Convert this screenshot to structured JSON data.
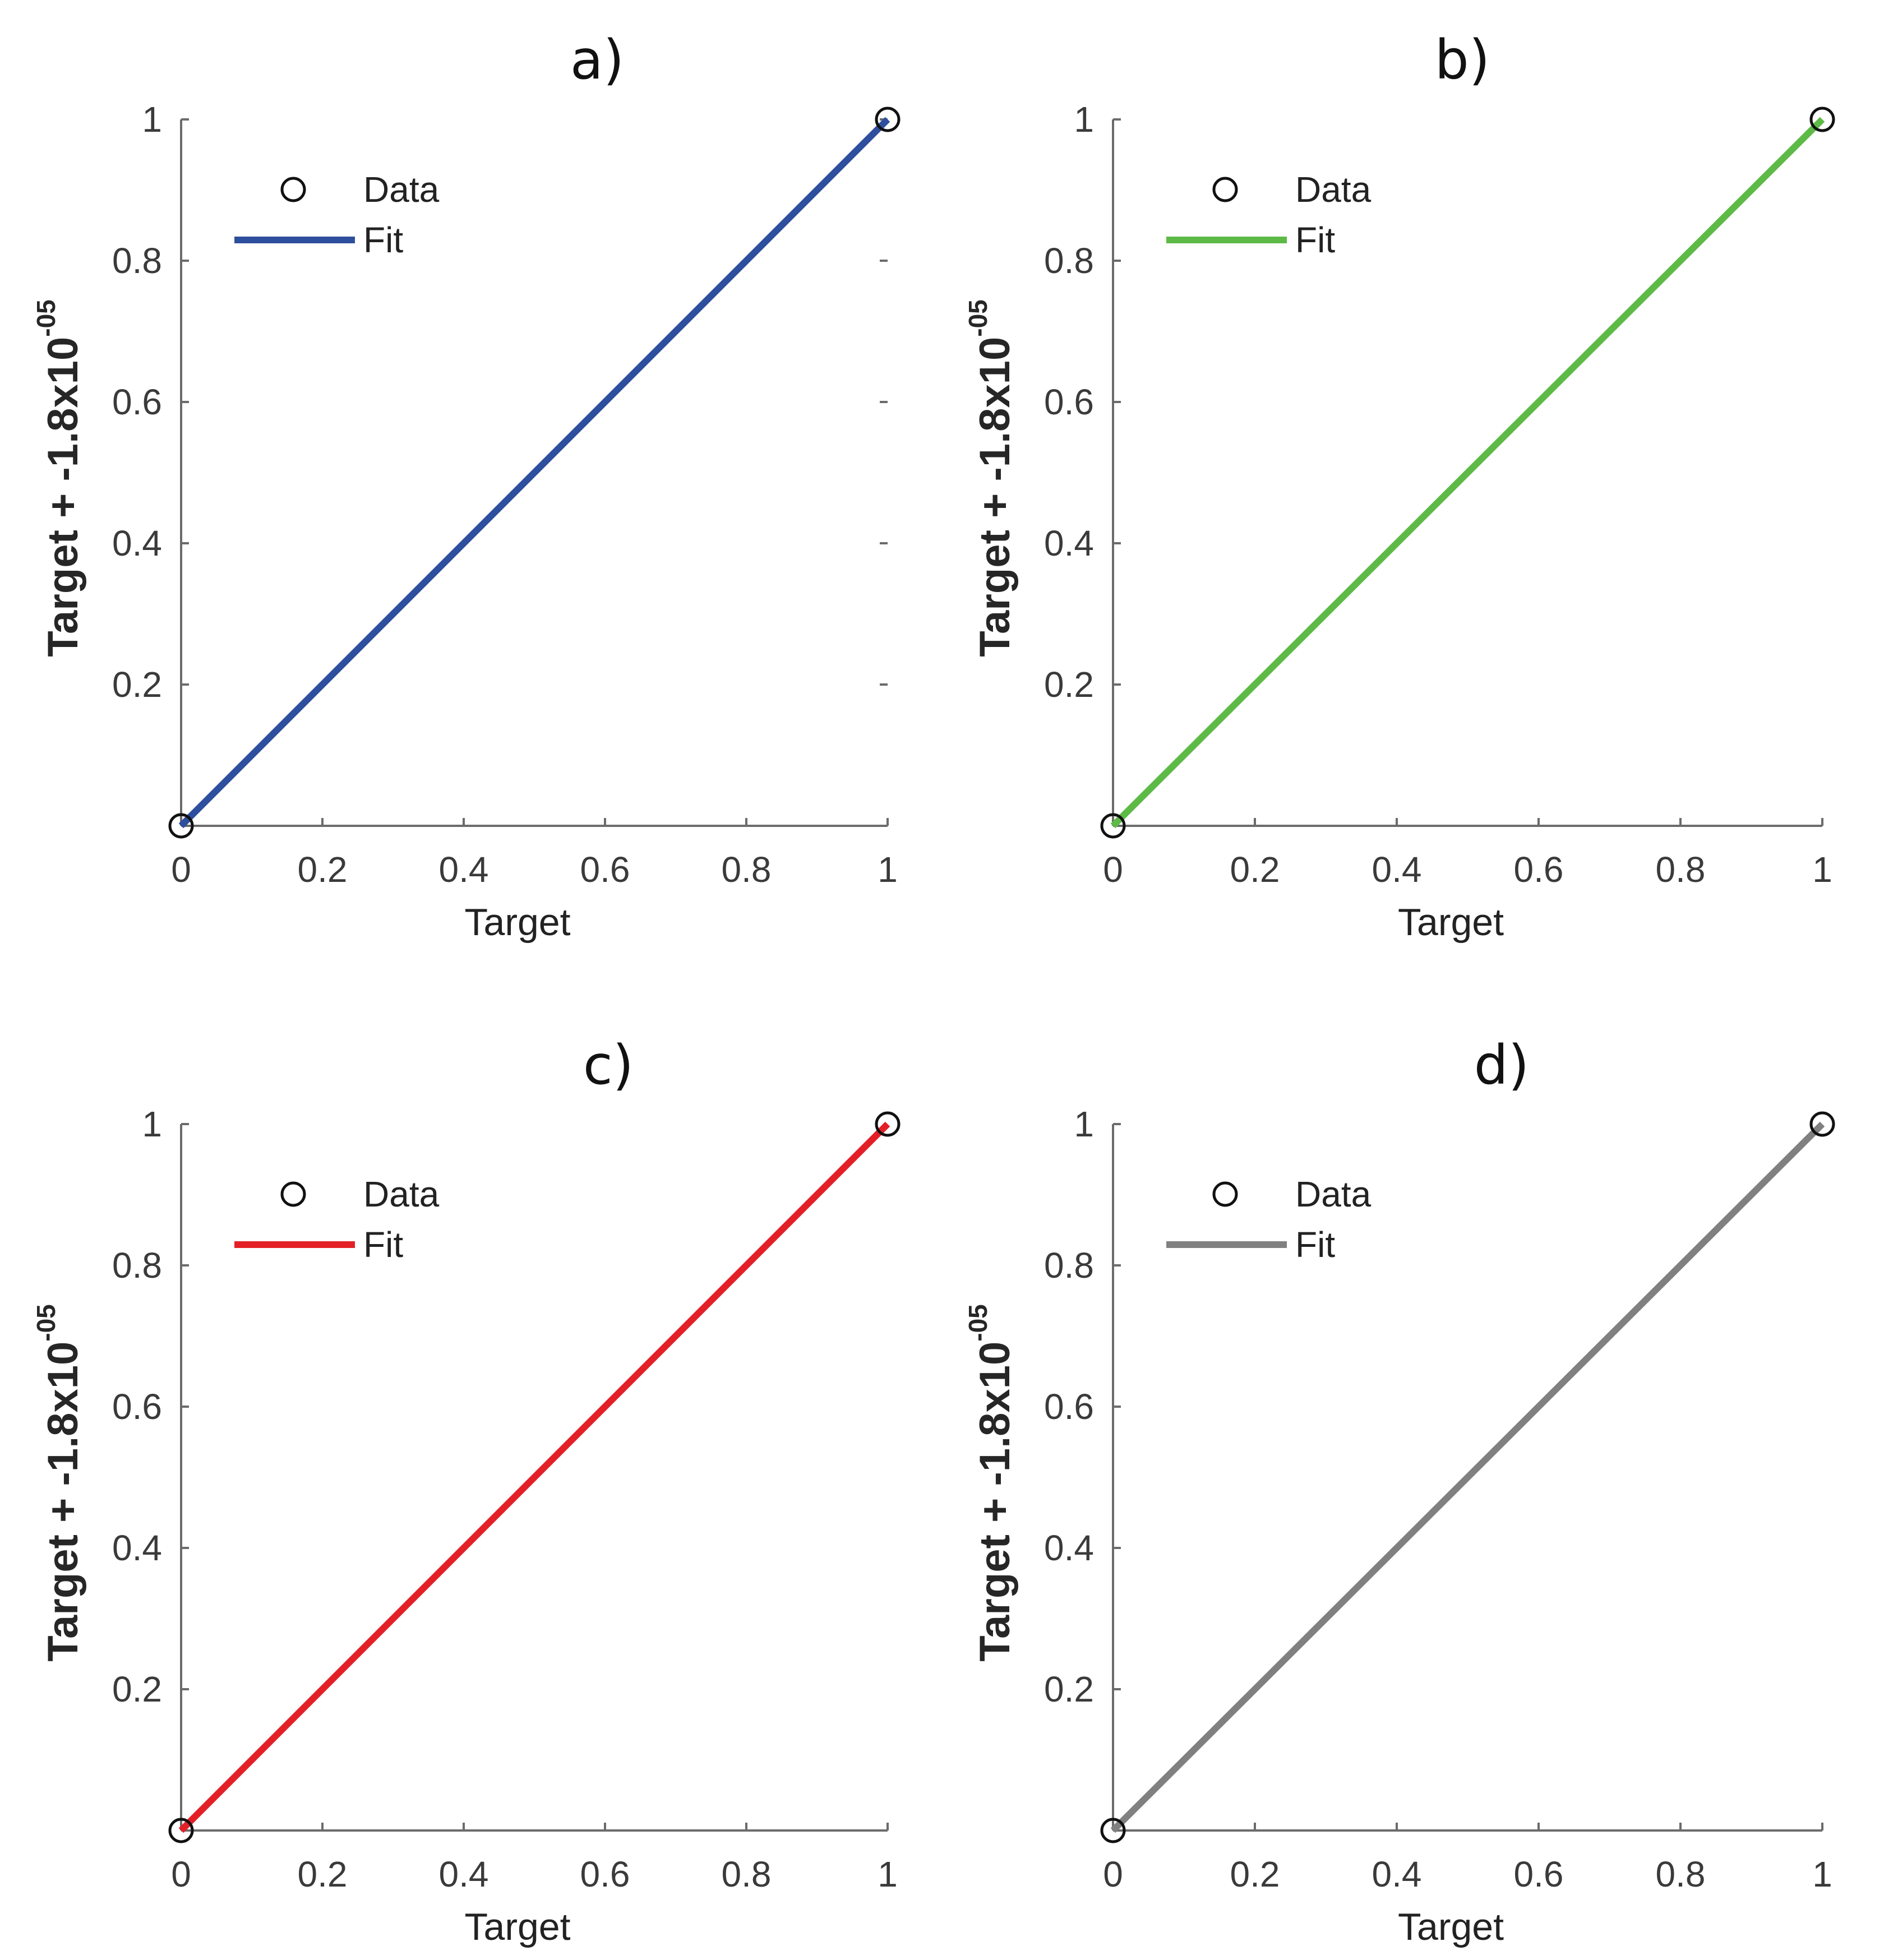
{
  "chart_data": [
    {
      "type": "line",
      "title": "a)",
      "xlabel": "Target",
      "ylabel": "Target + -1.8x10",
      "ylabel_exponent": "-05",
      "xlim": [
        0,
        1
      ],
      "ylim": [
        0,
        1
      ],
      "xticks": [
        "0",
        "0.2",
        "0.4",
        "0.6",
        "0.8",
        "1"
      ],
      "yticks": [
        "0.2",
        "0.4",
        "0.6",
        "0.8",
        "1"
      ],
      "legend": [
        "Data",
        "Fit"
      ],
      "legend_position": "top-left",
      "fit_color": "#2e4e9e",
      "series": [
        {
          "name": "Data",
          "style": "markers",
          "x": [
            0,
            1
          ],
          "y": [
            0,
            1
          ]
        },
        {
          "name": "Fit",
          "style": "line",
          "x": [
            0,
            1
          ],
          "y": [
            0,
            1
          ]
        }
      ]
    },
    {
      "type": "line",
      "title": "b)",
      "xlabel": "Target",
      "ylabel": "Target + -1.8x10",
      "ylabel_exponent": "-05",
      "xlim": [
        0,
        1
      ],
      "ylim": [
        0,
        1
      ],
      "xticks": [
        "0",
        "0.2",
        "0.4",
        "0.6",
        "0.8",
        "1"
      ],
      "yticks": [
        "0.2",
        "0.4",
        "0.6",
        "0.8",
        "1"
      ],
      "legend": [
        "Data",
        "Fit"
      ],
      "legend_position": "top-left",
      "fit_color": "#5dba46",
      "series": [
        {
          "name": "Data",
          "style": "markers",
          "x": [
            0,
            1
          ],
          "y": [
            0,
            1
          ]
        },
        {
          "name": "Fit",
          "style": "line",
          "x": [
            0,
            1
          ],
          "y": [
            0,
            1
          ]
        }
      ]
    },
    {
      "type": "line",
      "title": "c)",
      "xlabel": "Target",
      "ylabel": "Target + -1.8x10",
      "ylabel_exponent": "-05",
      "xlim": [
        0,
        1
      ],
      "ylim": [
        0,
        1
      ],
      "xticks": [
        "0",
        "0.2",
        "0.4",
        "0.6",
        "0.8",
        "1"
      ],
      "yticks": [
        "0.2",
        "0.4",
        "0.6",
        "0.8",
        "1"
      ],
      "legend": [
        "Data",
        "Fit"
      ],
      "legend_position": "top-left",
      "fit_color": "#e32027",
      "series": [
        {
          "name": "Data",
          "style": "markers",
          "x": [
            0,
            1
          ],
          "y": [
            0,
            1
          ]
        },
        {
          "name": "Fit",
          "style": "line",
          "x": [
            0,
            1
          ],
          "y": [
            0,
            1
          ]
        }
      ]
    },
    {
      "type": "line",
      "title": "d)",
      "xlabel": "Target",
      "ylabel": "Target + -1.8x10",
      "ylabel_exponent": "-05",
      "xlim": [
        0,
        1
      ],
      "ylim": [
        0,
        1
      ],
      "xticks": [
        "0",
        "0.2",
        "0.4",
        "0.6",
        "0.8",
        "1"
      ],
      "yticks": [
        "0.2",
        "0.4",
        "0.6",
        "0.8",
        "1"
      ],
      "legend": [
        "Data",
        "Fit"
      ],
      "legend_position": "top-left",
      "fit_color": "#808080",
      "series": [
        {
          "name": "Data",
          "style": "markers",
          "x": [
            0,
            1
          ],
          "y": [
            0,
            1
          ]
        },
        {
          "name": "Fit",
          "style": "line",
          "x": [
            0,
            1
          ],
          "y": [
            0,
            1
          ]
        }
      ]
    }
  ]
}
